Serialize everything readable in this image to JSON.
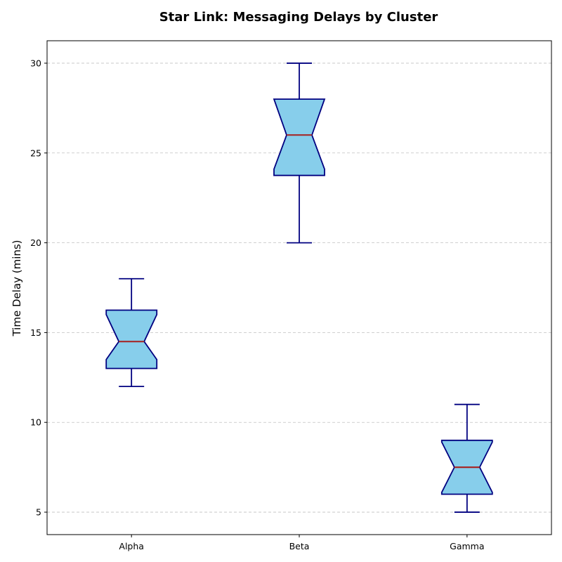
{
  "chart_data": {
    "type": "box",
    "title": "Star Link: Messaging Delays by Cluster",
    "xlabel": "",
    "ylabel": "Time Delay (mins)",
    "ylim": [
      3.75,
      31.25
    ],
    "yticks": [
      5,
      10,
      15,
      20,
      25,
      30
    ],
    "grid": "y-dashed",
    "notched": true,
    "categories": [
      "Alpha",
      "Beta",
      "Gamma"
    ],
    "boxes": [
      {
        "category": "Alpha",
        "whisker_low": 12,
        "q1": 13,
        "median": 14.5,
        "q3": 16.25,
        "whisker_high": 18,
        "notch_low": 13.5,
        "notch_high": 16.0
      },
      {
        "category": "Beta",
        "whisker_low": 20,
        "q1": 23.75,
        "median": 26,
        "q3": 28,
        "whisker_high": 30,
        "notch_low": 24.1,
        "notch_high": 28.0
      },
      {
        "category": "Gamma",
        "whisker_low": 5,
        "q1": 6,
        "median": 7.5,
        "q3": 9,
        "whisker_high": 11,
        "notch_low": 6.1,
        "notch_high": 8.9
      }
    ],
    "colors": {
      "box_fill": "#87ceeb",
      "box_edge": "#000080",
      "median": "#a52a2a",
      "grid": "#c0c0c0",
      "axis": "#000000"
    }
  }
}
